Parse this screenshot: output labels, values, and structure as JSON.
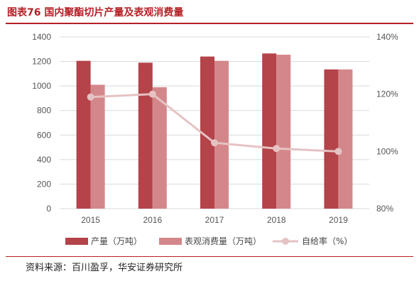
{
  "header": {
    "title": "图表76 国内聚酯切片产量及表观消费量"
  },
  "footer": {
    "source": "资料来源：百川盈孚，华安证券研究所"
  },
  "colors": {
    "title": "#b52025",
    "production": "#b5434a",
    "consumption": "#d4878a",
    "ratio": "#e6c2c3",
    "grid": "#d9d9d9"
  },
  "chart_data": {
    "type": "bar",
    "categories": [
      "2015",
      "2016",
      "2017",
      "2018",
      "2019"
    ],
    "series": [
      {
        "name": "产量（万吨）",
        "type": "bar",
        "axis": "left",
        "values": [
          1205,
          1190,
          1240,
          1265,
          1135
        ]
      },
      {
        "name": "表观消费量（万吨）",
        "type": "bar",
        "axis": "left",
        "values": [
          1010,
          990,
          1205,
          1255,
          1135
        ]
      },
      {
        "name": "自给率（%）",
        "type": "line",
        "axis": "right",
        "values": [
          119,
          120,
          103,
          101,
          100
        ]
      }
    ],
    "y_left": {
      "min": 0,
      "max": 1400,
      "ticks": [
        "0",
        "200",
        "400",
        "600",
        "800",
        "1000",
        "1200",
        "1400"
      ]
    },
    "y_right": {
      "min": 80,
      "max": 140,
      "ticks": [
        "80%",
        "100%",
        "120%",
        "140%"
      ]
    },
    "grid": true,
    "legend_position": "bottom"
  }
}
